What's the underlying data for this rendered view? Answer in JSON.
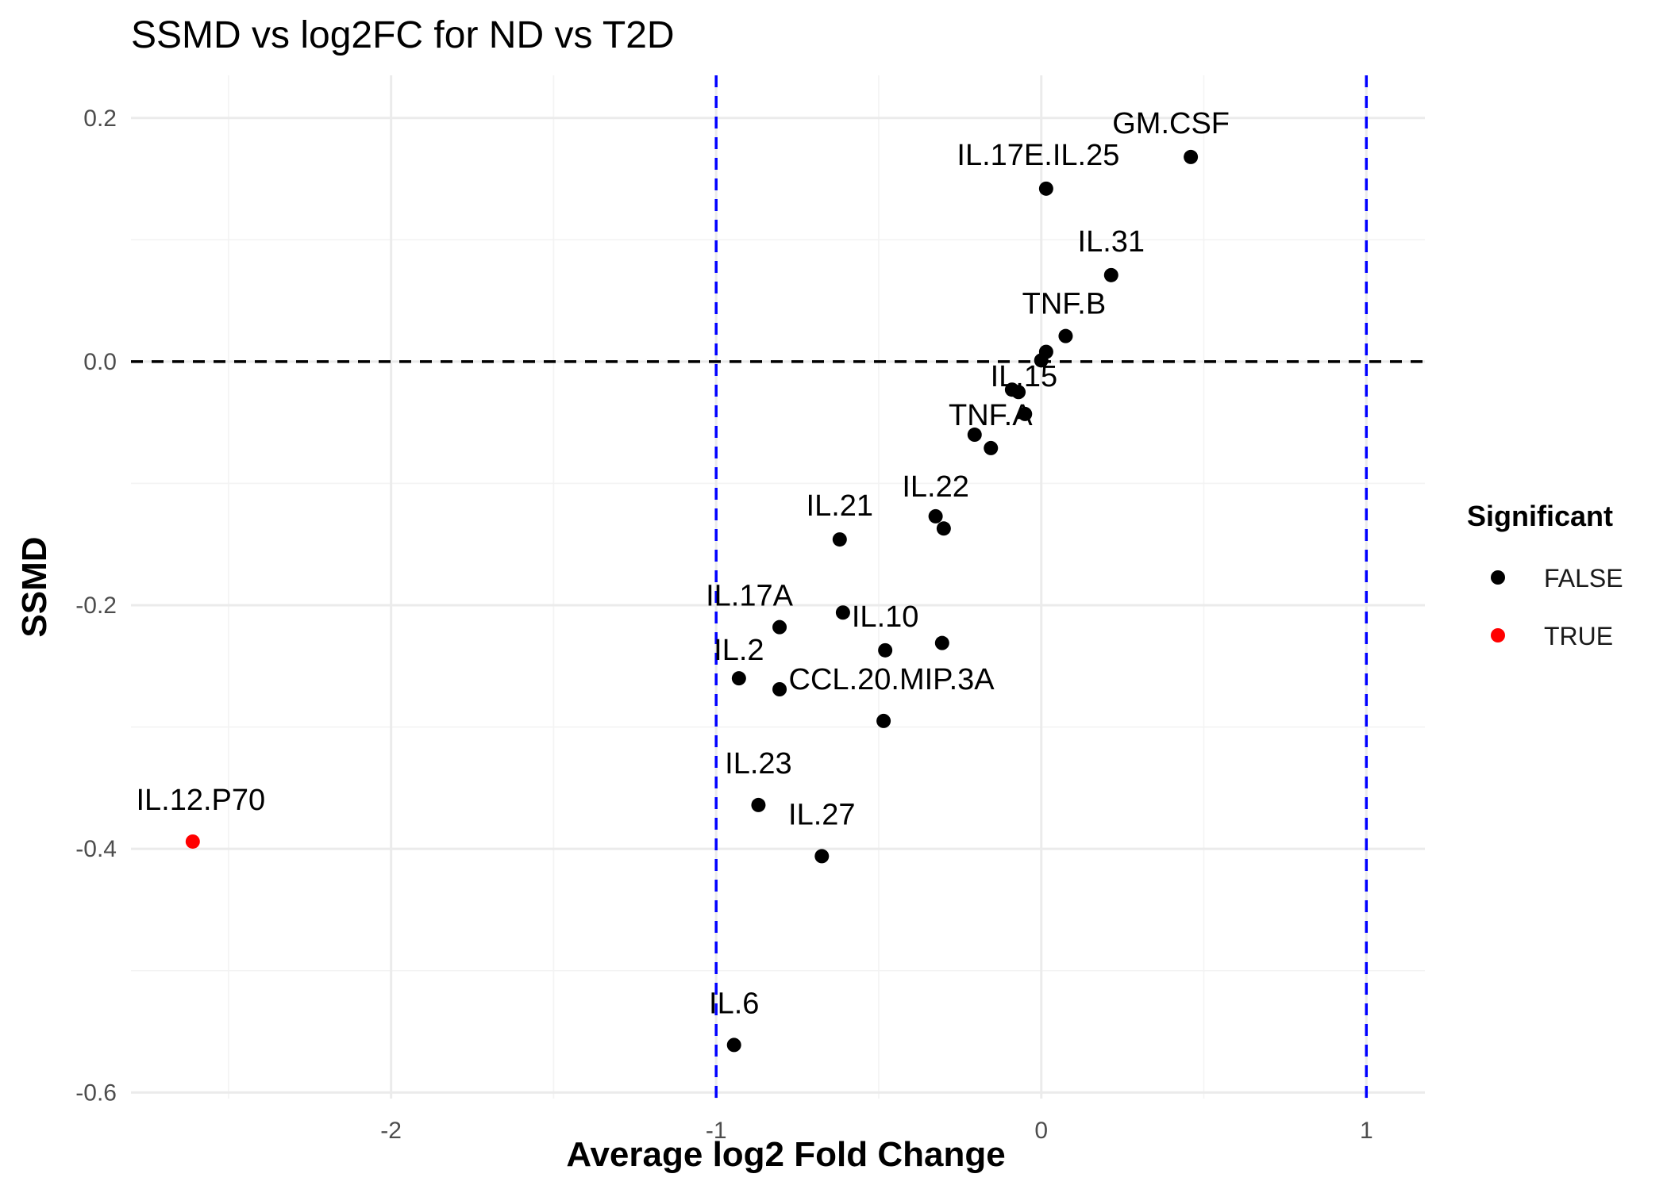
{
  "chart_data": {
    "type": "scatter",
    "title": "SSMD vs log2FC for ND vs T2D",
    "xlabel": "Average log2 Fold Change",
    "ylabel": "SSMD",
    "xlim": [
      -2.8,
      1.18
    ],
    "ylim": [
      -0.605,
      0.235
    ],
    "x_ticks": [
      -2,
      -1,
      0,
      1
    ],
    "x_tick_labels": [
      "-2",
      "-1",
      "0",
      "1"
    ],
    "y_ticks": [
      -0.6,
      -0.4,
      -0.2,
      0.0,
      0.2
    ],
    "y_tick_labels": [
      "-0.6",
      "-0.4",
      "-0.2",
      "0.0",
      "0.2"
    ],
    "grid": true,
    "reference_lines": {
      "horizontal": {
        "y": 0,
        "color": "#000000",
        "style": "dashed"
      },
      "vertical": [
        {
          "x": -1,
          "color": "#0000ff",
          "style": "dashed"
        },
        {
          "x": 1,
          "color": "#0000ff",
          "style": "dashed"
        }
      ]
    },
    "legend": {
      "title": "Significant",
      "placement": "right",
      "entries": [
        {
          "label": "FALSE",
          "color": "#000000"
        },
        {
          "label": "TRUE",
          "color": "#ff0000"
        }
      ]
    },
    "points": [
      {
        "x": 0.46,
        "y": 0.168,
        "label": "GM.CSF",
        "significant": false
      },
      {
        "x": 0.015,
        "y": 0.142,
        "label": "IL.17E.IL.25",
        "significant": false
      },
      {
        "x": 0.215,
        "y": 0.071,
        "label": "IL.31",
        "significant": false
      },
      {
        "x": 0.075,
        "y": 0.021,
        "label": "TNF.B",
        "significant": false
      },
      {
        "x": 0.015,
        "y": 0.008,
        "label": "",
        "significant": false
      },
      {
        "x": 0.0,
        "y": 0.001,
        "label": "",
        "significant": false
      },
      {
        "x": -0.09,
        "y": -0.023,
        "label": "IL.15",
        "significant": false
      },
      {
        "x": -0.07,
        "y": -0.025,
        "label": "",
        "significant": false
      },
      {
        "x": -0.05,
        "y": -0.043,
        "label": "",
        "significant": false
      },
      {
        "x": -0.205,
        "y": -0.06,
        "label": "TNF.A",
        "significant": false
      },
      {
        "x": -0.155,
        "y": -0.071,
        "label": "",
        "significant": false
      },
      {
        "x": -0.325,
        "y": -0.127,
        "label": "IL.22",
        "significant": false
      },
      {
        "x": -0.3,
        "y": -0.137,
        "label": "",
        "significant": false
      },
      {
        "x": -0.62,
        "y": -0.146,
        "label": "IL.21",
        "significant": false
      },
      {
        "x": -0.61,
        "y": -0.206,
        "label": "",
        "significant": false
      },
      {
        "x": -0.805,
        "y": -0.218,
        "label": "IL.17A",
        "significant": false
      },
      {
        "x": -0.48,
        "y": -0.237,
        "label": "IL.10",
        "significant": false
      },
      {
        "x": -0.305,
        "y": -0.231,
        "label": "",
        "significant": false
      },
      {
        "x": -0.93,
        "y": -0.26,
        "label": "IL.2",
        "significant": false
      },
      {
        "x": -0.805,
        "y": -0.269,
        "label": "",
        "significant": false
      },
      {
        "x": -0.485,
        "y": -0.295,
        "label": "CCL.20.MIP.3A",
        "significant": false
      },
      {
        "x": -0.87,
        "y": -0.364,
        "label": "IL.23",
        "significant": false
      },
      {
        "x": -2.61,
        "y": -0.394,
        "label": "IL.12.P70",
        "significant": true
      },
      {
        "x": -0.675,
        "y": -0.406,
        "label": "IL.27",
        "significant": false
      },
      {
        "x": -0.945,
        "y": -0.561,
        "label": "IL.6",
        "significant": false
      }
    ]
  }
}
